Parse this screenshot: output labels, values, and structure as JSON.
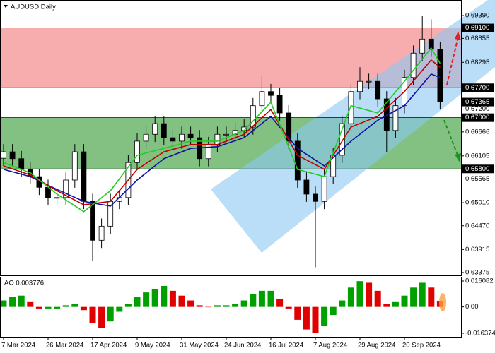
{
  "chart_data": [
    {
      "type": "candlestick",
      "title": "AUDUSD,Daily",
      "categories": [
        "7 Mar 2024",
        null,
        null,
        null,
        null,
        "26 Mar 2024",
        null,
        null,
        null,
        null,
        "17 Apr 2024",
        null,
        null,
        null,
        null,
        "9 May 2024",
        null,
        null,
        null,
        null,
        "31 May 2024",
        null,
        null,
        null,
        null,
        "24 Jun 2024",
        null,
        null,
        null,
        null,
        "16 Jul 2024",
        null,
        null,
        null,
        null,
        "7 Aug 2024",
        null,
        null,
        null,
        null,
        "29 Aug 2024",
        null,
        null,
        null,
        null,
        "20 Sep 2024",
        null,
        null,
        null,
        null
      ],
      "open": [
        0.6605,
        0.662,
        0.6604,
        0.6579,
        0.6562,
        0.6537,
        0.6513,
        0.6513,
        0.6554,
        0.662,
        0.6504,
        0.6413,
        0.6446,
        0.6504,
        0.6513,
        0.6595,
        0.6645,
        0.6661,
        0.6686,
        0.6653,
        0.6645,
        0.6661,
        0.6653,
        0.6604,
        0.6637,
        0.6661,
        0.6661,
        0.667,
        0.6678,
        0.6728,
        0.6761,
        0.6752,
        0.6711,
        0.6645,
        0.6554,
        0.6521,
        0.6504,
        0.6562,
        0.6612,
        0.6686,
        0.6761,
        0.6785,
        0.6785,
        0.6744,
        0.667,
        0.6728,
        0.6794,
        0.6851,
        0.6884,
        0.686
      ],
      "high": [
        0.6638,
        0.6638,
        0.6622,
        0.6597,
        0.658,
        0.6555,
        0.6531,
        0.6572,
        0.6638,
        0.6638,
        0.6522,
        0.6464,
        0.6522,
        0.6531,
        0.6613,
        0.6663,
        0.6679,
        0.6704,
        0.6704,
        0.6671,
        0.6679,
        0.6679,
        0.6671,
        0.6655,
        0.6679,
        0.6679,
        0.6688,
        0.6696,
        0.6746,
        0.6797,
        0.6779,
        0.677,
        0.6729,
        0.6663,
        0.6572,
        0.6539,
        0.658,
        0.663,
        0.6704,
        0.6779,
        0.6818,
        0.6803,
        0.6803,
        0.6762,
        0.6746,
        0.6812,
        0.6869,
        0.6939,
        0.693,
        0.6878
      ],
      "low": [
        0.6587,
        0.6586,
        0.6561,
        0.6544,
        0.6519,
        0.6495,
        0.6495,
        0.6495,
        0.6536,
        0.6486,
        0.6364,
        0.6395,
        0.6428,
        0.6486,
        0.6495,
        0.6577,
        0.6627,
        0.6643,
        0.6635,
        0.6627,
        0.6627,
        0.6635,
        0.6586,
        0.6586,
        0.6619,
        0.6643,
        0.6643,
        0.6652,
        0.666,
        0.671,
        0.6734,
        0.6693,
        0.6627,
        0.6536,
        0.6503,
        0.635,
        0.6486,
        0.6544,
        0.6594,
        0.6668,
        0.6743,
        0.6767,
        0.6726,
        0.662,
        0.6652,
        0.671,
        0.6776,
        0.6833,
        0.6842,
        0.6719
      ],
      "close": [
        0.662,
        0.6604,
        0.6579,
        0.6562,
        0.6537,
        0.6513,
        0.6513,
        0.6554,
        0.662,
        0.6504,
        0.6413,
        0.6446,
        0.6504,
        0.6513,
        0.6595,
        0.6645,
        0.6661,
        0.6686,
        0.6653,
        0.6645,
        0.6661,
        0.6653,
        0.6604,
        0.6637,
        0.6661,
        0.6661,
        0.667,
        0.6678,
        0.6728,
        0.6761,
        0.6752,
        0.6711,
        0.6645,
        0.6554,
        0.6521,
        0.6504,
        0.6562,
        0.6612,
        0.6686,
        0.6761,
        0.6785,
        0.6785,
        0.6744,
        0.667,
        0.6728,
        0.6794,
        0.6851,
        0.6884,
        0.686,
        0.6737
      ],
      "up_color": "#ffffff",
      "down_color": "#000000",
      "candle_border": "#000000",
      "series": [
        {
          "color": "#1010a0",
          "x": [
            0,
            3,
            6,
            9,
            12,
            15,
            18,
            21,
            24,
            27,
            30,
            33,
            36,
            39,
            42,
            45,
            48,
            49
          ],
          "values": [
            0.6579,
            0.6562,
            0.6532,
            0.6504,
            0.6493,
            0.6554,
            0.6604,
            0.6628,
            0.6632,
            0.6653,
            0.6703,
            0.6628,
            0.6587,
            0.6645,
            0.6694,
            0.6728,
            0.6802,
            0.6794
          ]
        },
        {
          "color": "#c00000",
          "x": [
            0,
            3,
            6,
            9,
            12,
            15,
            18,
            21,
            24,
            27,
            30,
            33,
            36,
            39,
            42,
            45,
            48,
            49
          ],
          "values": [
            0.6587,
            0.6566,
            0.6529,
            0.6496,
            0.6504,
            0.6579,
            0.662,
            0.6637,
            0.6637,
            0.6661,
            0.6719,
            0.6612,
            0.6579,
            0.6678,
            0.6703,
            0.6761,
            0.6835,
            0.6818
          ]
        },
        {
          "color": "#22cc22",
          "x": [
            0,
            3,
            6,
            9,
            12,
            15,
            18,
            21,
            24,
            27,
            30,
            33,
            36,
            39,
            42,
            45,
            48,
            49
          ],
          "values": [
            0.6595,
            0.6571,
            0.6521,
            0.648,
            0.6529,
            0.6612,
            0.6628,
            0.6645,
            0.6645,
            0.667,
            0.6736,
            0.6579,
            0.6562,
            0.6728,
            0.6711,
            0.6785,
            0.6863,
            0.6827
          ]
        }
      ],
      "zones": [
        {
          "from": 0.691,
          "to": 0.677,
          "color": "#f48a8a"
        },
        {
          "from": 0.67,
          "to": 0.658,
          "color": "#4ea64e"
        }
      ],
      "levels": [
        {
          "value": 0.691,
          "label": "0.69100"
        },
        {
          "value": 0.677,
          "label": "0.67700"
        },
        {
          "value": 0.67,
          "label": "0.67000"
        },
        {
          "value": 0.658,
          "label": "0.65800"
        }
      ],
      "current_price": {
        "value": 0.67365,
        "label": "0.67365"
      },
      "ylim": [
        0.63309,
        0.69754
      ],
      "yticks": [
        {
          "value": 0.6939,
          "label": "0.69390"
        },
        {
          "value": 0.68855,
          "label": "0.68855"
        },
        {
          "value": 0.68295,
          "label": "0.68295"
        },
        {
          "value": 0.672,
          "label": "0.67200"
        },
        {
          "value": 0.66666,
          "label": "0.66666"
        },
        {
          "value": 0.66105,
          "label": "0.66105"
        },
        {
          "value": 0.65565,
          "label": "0.65565"
        },
        {
          "value": 0.6501,
          "label": "0.65010"
        },
        {
          "value": 0.6447,
          "label": "0.64470"
        },
        {
          "value": 0.63915,
          "label": "0.63915"
        },
        {
          "value": 0.63375,
          "label": "0.63375"
        }
      ]
    },
    {
      "type": "bar",
      "title": "AO 0.003776",
      "values": [
        0.004,
        0.006,
        0.007,
        0.003,
        -0.001,
        -0.001,
        -0.001,
        0.001,
        0.002,
        -0.002,
        -0.01,
        -0.013,
        -0.009,
        -0.003,
        0.002,
        0.006,
        0.009,
        0.011,
        0.013,
        0.01,
        0.007,
        0.004,
        0.001,
        0.0,
        0.001,
        0.001,
        0.002,
        0.004,
        0.008,
        0.01,
        0.01,
        0.005,
        -0.001,
        -0.008,
        -0.014,
        -0.016,
        -0.012,
        -0.005,
        0.004,
        0.012,
        0.016,
        0.015,
        0.01,
        0.002,
        0.003,
        0.007,
        0.012,
        0.015,
        0.012,
        0.003776
      ],
      "up_color": "#00a000",
      "down_color": "#e00000",
      "ylim": [
        -0.01901,
        0.01871
      ],
      "yticks": [
        0.016082,
        {
          "value": 0,
          "label": "0.00"
        },
        -0.016374
      ]
    }
  ]
}
